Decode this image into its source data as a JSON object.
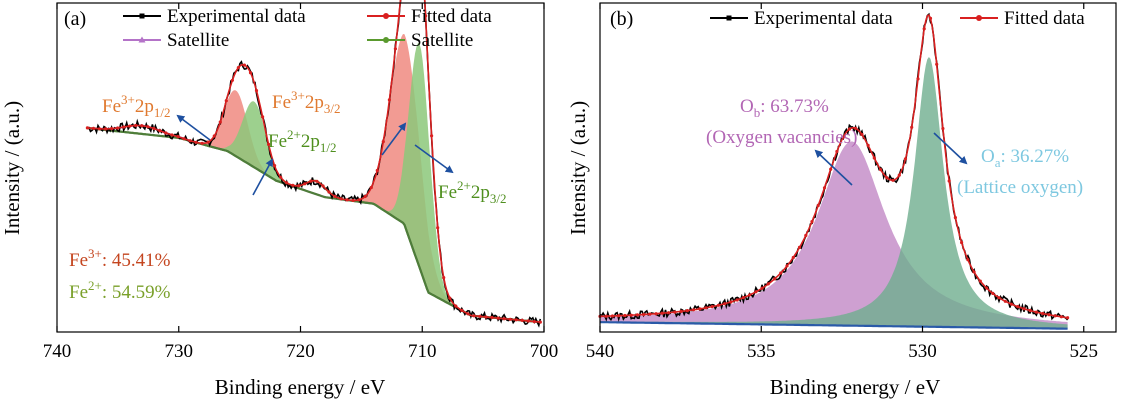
{
  "colors": {
    "experimental": "#000000",
    "fitted": "#d92020",
    "satellite_purple": "#b473c8",
    "satellite_green": "#5a9a2e",
    "fe3_fill": "#f08a80",
    "fe2_fill": "#8cc87a",
    "fe3_text": "#e07a30",
    "fe2_text": "#4f8f1f",
    "fe3_pct_text": "#c4451f",
    "fe2_pct_text": "#7aa02a",
    "ob_fill": "#c288c6",
    "oa_fill": "#6fae8e",
    "ob_text": "#b266b4",
    "oa_text": "#7ec8e0",
    "background_line": "#2a5aa8",
    "arrow": "#1e50a0"
  },
  "chart_data": [
    {
      "panel": "(a)",
      "type": "line",
      "xlabel": "Binding energy / eV",
      "ylabel": "Intensity / (a.u.)",
      "xlim": [
        740,
        700
      ],
      "ylim": [
        0,
        1
      ],
      "x_ticks": [
        740,
        730,
        720,
        710,
        700
      ],
      "legend": [
        {
          "label": "Experimental data",
          "color_key": "experimental",
          "marker": "square"
        },
        {
          "label": "Fitted data",
          "color_key": "fitted",
          "marker": "circle"
        },
        {
          "label": "Satellite",
          "color_key": "satellite_purple",
          "marker": "triangle"
        },
        {
          "label": "Satellite",
          "color_key": "satellite_green",
          "marker": "circle"
        }
      ],
      "peaks": [
        {
          "label": "Fe3+ 2p1/2",
          "center": 725.3,
          "amplitude": 0.2,
          "sigma": 0.95,
          "color_key": "fe3_fill"
        },
        {
          "label": "Fe2+ 2p1/2",
          "center": 723.8,
          "amplitude": 0.2,
          "sigma": 0.95,
          "color_key": "fe2_fill"
        },
        {
          "label": "Fe3+ 2p3/2",
          "center": 711.4,
          "amplitude": 0.58,
          "sigma": 1.25,
          "color_key": "fe3_fill"
        },
        {
          "label": "Fe2+ 2p3/2",
          "center": 710.2,
          "amplitude": 0.68,
          "sigma": 0.85,
          "color_key": "fe2_fill"
        }
      ],
      "satellites": [
        {
          "center": 733.0,
          "amplitude": 0.025,
          "sigma": 1.5,
          "color_key": "satellite_purple"
        },
        {
          "center": 718.7,
          "amplitude": 0.04,
          "sigma": 0.8,
          "color_key": "satellite_green"
        }
      ],
      "background": [
        {
          "x": 737.5,
          "y": 0.62
        },
        {
          "x": 730,
          "y": 0.59
        },
        {
          "x": 726,
          "y": 0.55
        },
        {
          "x": 722,
          "y": 0.46
        },
        {
          "x": 718,
          "y": 0.41
        },
        {
          "x": 714,
          "y": 0.39
        },
        {
          "x": 711.5,
          "y": 0.33
        },
        {
          "x": 709.5,
          "y": 0.12
        },
        {
          "x": 706,
          "y": 0.05
        },
        {
          "x": 700.3,
          "y": 0.03
        }
      ],
      "series": [
        {
          "name": "Experimental data",
          "x_range": [
            737.5,
            700.3
          ]
        },
        {
          "name": "Fitted data",
          "x_range": [
            737.5,
            700.3
          ]
        }
      ],
      "annotations": {
        "fe3_p12": {
          "base": "Fe",
          "sup": "3+",
          "mid": "2p",
          "sub": "1/2"
        },
        "fe2_p12": {
          "base": "Fe",
          "sup": "2+",
          "mid": "2p",
          "sub": "1/2"
        },
        "fe3_p32": {
          "base": "Fe",
          "sup": "3+",
          "mid": "2p",
          "sub": "3/2"
        },
        "fe2_p32": {
          "base": "Fe",
          "sup": "2+",
          "mid": "2p",
          "sub": "3/2"
        },
        "fe3_pct": {
          "base": "Fe",
          "sup": "3+",
          "rest": ": 45.41%"
        },
        "fe2_pct": {
          "base": "Fe",
          "sup": "2+",
          "rest": ": 54.59%"
        }
      },
      "percentages": {
        "Fe3+": 45.41,
        "Fe2+": 54.59
      }
    },
    {
      "panel": "(b)",
      "type": "line",
      "xlabel": "Binding energy / eV",
      "ylabel": "Intensity / (a.u.)",
      "xlim": [
        540,
        524
      ],
      "ylim": [
        0,
        1
      ],
      "x_ticks": [
        540,
        535,
        530,
        525
      ],
      "legend": [
        {
          "label": "Experimental data",
          "color_key": "experimental",
          "marker": "square"
        },
        {
          "label": "Fitted data",
          "color_key": "fitted",
          "marker": "circle"
        }
      ],
      "peaks": [
        {
          "label": "Ob (Oxygen vacancies)",
          "center": 532.2,
          "amplitude": 0.56,
          "gamma": 1.3,
          "color_key": "ob_fill"
        },
        {
          "label": "Oa (Lattice oxygen)",
          "center": 529.8,
          "amplitude": 0.82,
          "gamma": 0.55,
          "color_key": "oa_fill"
        }
      ],
      "background": [
        {
          "x": 540,
          "y": 0.03
        },
        {
          "x": 525.5,
          "y": 0.01
        }
      ],
      "series": [
        {
          "name": "Experimental data",
          "x_range": [
            540,
            525.5
          ]
        },
        {
          "name": "Fitted data",
          "x_range": [
            540,
            525.5
          ]
        }
      ],
      "annotations": {
        "ob_main": {
          "base": "O",
          "sub": "b",
          "rest": ": 63.73%"
        },
        "ob_sub": "(Oxygen vacancies)",
        "oa_main": {
          "base": "O",
          "sub": "a",
          "rest": ": 36.27%"
        },
        "oa_sub": "(Lattice oxygen)"
      },
      "percentages": {
        "Ob": 63.73,
        "Oa": 36.27
      }
    }
  ]
}
